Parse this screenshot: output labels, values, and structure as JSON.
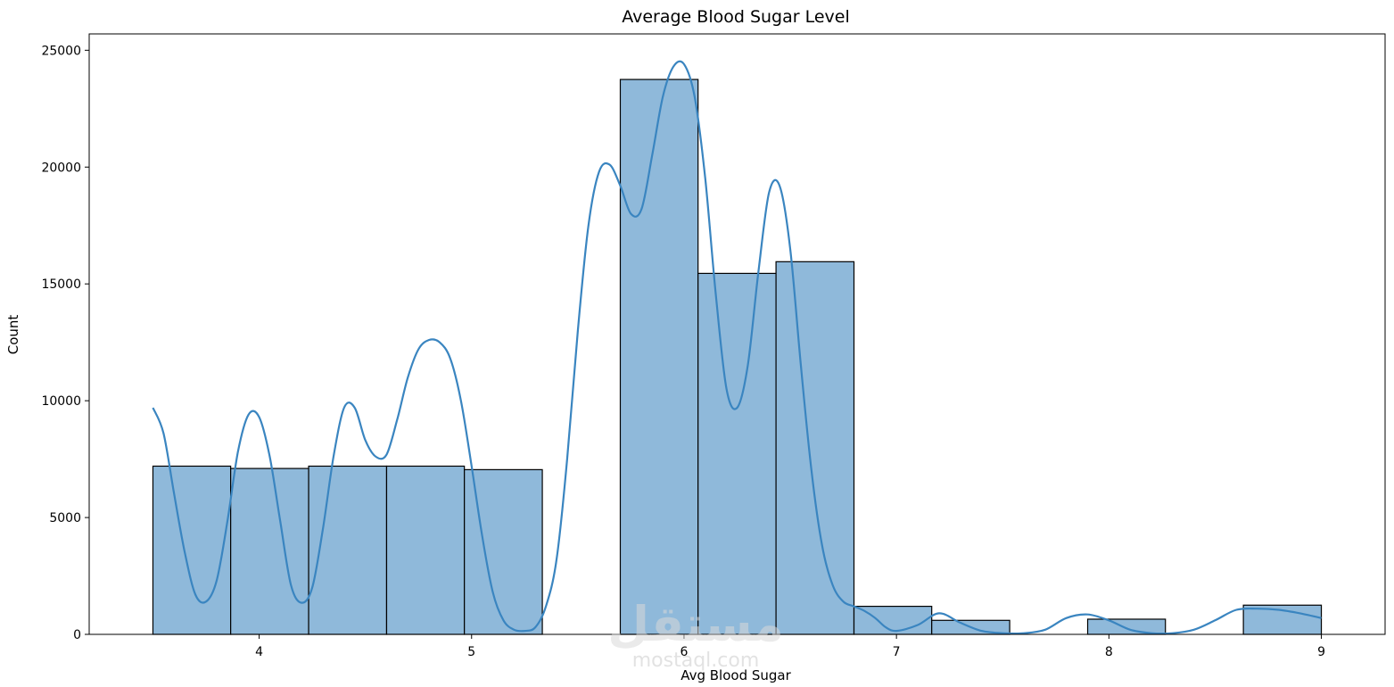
{
  "watermark": {
    "glyph": "مستقل",
    "text": "mostaql.com"
  },
  "chart_data": {
    "type": "histogram",
    "title": "Average Blood Sugar Level",
    "xlabel": "Avg Blood Sugar",
    "ylabel": "Count",
    "xlim": [
      3.2,
      9.3
    ],
    "ylim": [
      0,
      25700
    ],
    "xticks": [
      4,
      5,
      6,
      7,
      8,
      9
    ],
    "yticks": [
      0,
      5000,
      10000,
      15000,
      20000,
      25000
    ],
    "bar_color": "#8fb9da",
    "edge_color": "#000000",
    "kde_color": "#3a85c0",
    "bins": [
      {
        "x0": 3.5,
        "x1": 3.866,
        "count": 7200
      },
      {
        "x0": 3.866,
        "x1": 4.233,
        "count": 7100
      },
      {
        "x0": 4.233,
        "x1": 4.6,
        "count": 7200
      },
      {
        "x0": 4.6,
        "x1": 4.966,
        "count": 7200
      },
      {
        "x0": 4.966,
        "x1": 5.333,
        "count": 7050
      },
      {
        "x0": 5.333,
        "x1": 5.7,
        "count": 0
      },
      {
        "x0": 5.7,
        "x1": 6.066,
        "count": 23750
      },
      {
        "x0": 6.066,
        "x1": 6.433,
        "count": 15450
      },
      {
        "x0": 6.433,
        "x1": 6.8,
        "count": 15950
      },
      {
        "x0": 6.8,
        "x1": 7.166,
        "count": 1200
      },
      {
        "x0": 7.166,
        "x1": 7.533,
        "count": 600
      },
      {
        "x0": 7.533,
        "x1": 7.9,
        "count": 0
      },
      {
        "x0": 7.9,
        "x1": 8.266,
        "count": 650
      },
      {
        "x0": 8.266,
        "x1": 8.633,
        "count": 0
      },
      {
        "x0": 8.633,
        "x1": 9.0,
        "count": 1250
      }
    ],
    "kde": {
      "x": [
        3.5,
        3.55,
        3.6,
        3.65,
        3.7,
        3.75,
        3.8,
        3.85,
        3.9,
        3.95,
        4.0,
        4.05,
        4.1,
        4.15,
        4.2,
        4.25,
        4.3,
        4.35,
        4.4,
        4.45,
        4.5,
        4.55,
        4.6,
        4.65,
        4.7,
        4.75,
        4.8,
        4.85,
        4.9,
        4.95,
        5.0,
        5.05,
        5.1,
        5.15,
        5.2,
        5.25,
        5.3,
        5.35,
        5.4,
        5.45,
        5.5,
        5.55,
        5.6,
        5.65,
        5.7,
        5.75,
        5.8,
        5.85,
        5.9,
        5.95,
        6.0,
        6.05,
        6.1,
        6.15,
        6.2,
        6.25,
        6.3,
        6.35,
        6.4,
        6.45,
        6.5,
        6.55,
        6.6,
        6.65,
        6.7,
        6.75,
        6.8,
        6.85,
        6.9,
        6.95,
        7.0,
        7.1,
        7.2,
        7.3,
        7.4,
        7.5,
        7.6,
        7.7,
        7.8,
        7.9,
        8.0,
        8.1,
        8.2,
        8.3,
        8.4,
        8.5,
        8.6,
        8.7,
        8.8,
        8.9,
        9.0
      ],
      "y": [
        9700,
        8600,
        6000,
        3500,
        1700,
        1400,
        2300,
        4800,
        7800,
        9400,
        9300,
        7600,
        4800,
        2100,
        1350,
        2000,
        4500,
        7600,
        9700,
        9700,
        8300,
        7600,
        7700,
        9200,
        11000,
        12200,
        12600,
        12500,
        11800,
        10000,
        7200,
        4200,
        1800,
        600,
        200,
        150,
        300,
        1200,
        3200,
        7500,
        13000,
        17500,
        19800,
        20100,
        19200,
        18000,
        18200,
        20500,
        23000,
        24300,
        24400,
        23000,
        19500,
        14500,
        10500,
        9700,
        11500,
        15500,
        18900,
        19200,
        16500,
        11500,
        7000,
        3800,
        2100,
        1400,
        1200,
        1000,
        700,
        300,
        150,
        400,
        900,
        500,
        150,
        50,
        50,
        200,
        700,
        850,
        600,
        200,
        50,
        50,
        200,
        600,
        1050,
        1100,
        1050,
        900,
        700
      ]
    }
  }
}
